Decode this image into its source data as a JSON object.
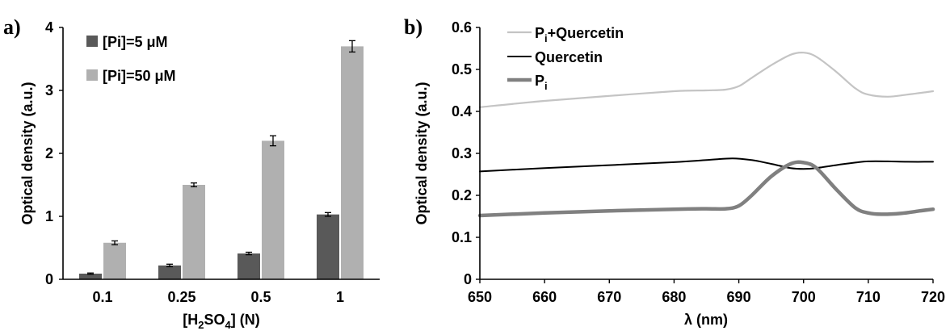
{
  "chart_data": [
    {
      "panel_label": "a)",
      "type": "bar",
      "categories": [
        "0.1",
        "0.25",
        "0.5",
        "1"
      ],
      "xlabel": {
        "pre": "[H",
        "sub1": "2",
        "mid": "SO",
        "sub2": "4",
        "post": "] (N)"
      },
      "ylabel": "Optical density  (a.u.)",
      "ylim": [
        0,
        4
      ],
      "yticks": [
        0,
        1,
        2,
        3,
        4
      ],
      "grid": false,
      "legend_position": "top-left",
      "series": [
        {
          "name": "[Pi]=5 μM",
          "color": "#595959",
          "values": [
            0.09,
            0.22,
            0.41,
            1.03
          ],
          "errors": [
            0.01,
            0.02,
            0.02,
            0.03
          ]
        },
        {
          "name": "[Pi]=50 μM",
          "color": "#b0b0b0",
          "values": [
            0.58,
            1.5,
            2.2,
            3.7
          ],
          "errors": [
            0.03,
            0.03,
            0.08,
            0.09
          ]
        }
      ]
    },
    {
      "panel_label": "b)",
      "type": "line",
      "xlabel": "λ (nm)",
      "ylabel": "Optical density (a.u.)",
      "xlim": [
        650,
        720
      ],
      "ylim": [
        0,
        0.6
      ],
      "xticks": [
        650,
        660,
        670,
        680,
        690,
        700,
        710,
        720
      ],
      "yticks": [
        "0",
        "0.1",
        "0.2",
        "0.3",
        "0.4",
        "0.5",
        "0.6"
      ],
      "grid": false,
      "legend_position": "top-left",
      "series": [
        {
          "name": "Pi+Quercetin",
          "name_main": "P",
          "name_sub": "i",
          "name_rest": "+Quercetin",
          "color": "#c4c4c4",
          "width": 2.2,
          "x": [
            650,
            660,
            670,
            680,
            685,
            688,
            690,
            692,
            695,
            698,
            700,
            702,
            705,
            708,
            710,
            713,
            716,
            720
          ],
          "y": [
            0.41,
            0.425,
            0.437,
            0.448,
            0.45,
            0.452,
            0.46,
            0.48,
            0.51,
            0.535,
            0.54,
            0.53,
            0.495,
            0.455,
            0.44,
            0.435,
            0.44,
            0.448
          ]
        },
        {
          "name": "Quercetin",
          "color": "#000000",
          "width": 2,
          "x": [
            650,
            660,
            670,
            680,
            685,
            689,
            692,
            695,
            698,
            700,
            702,
            705,
            708,
            710,
            713,
            716,
            720
          ],
          "y": [
            0.257,
            0.265,
            0.272,
            0.279,
            0.284,
            0.288,
            0.284,
            0.275,
            0.265,
            0.263,
            0.265,
            0.272,
            0.278,
            0.281,
            0.281,
            0.28,
            0.28
          ]
        },
        {
          "name": "Pi",
          "name_main": "P",
          "name_sub": "i",
          "name_rest": "",
          "color": "#808080",
          "width": 4.5,
          "x": [
            650,
            660,
            670,
            680,
            685,
            688,
            690,
            692,
            695,
            698,
            700,
            702,
            705,
            708,
            710,
            712,
            715,
            718,
            720
          ],
          "y": [
            0.152,
            0.158,
            0.163,
            0.167,
            0.168,
            0.168,
            0.175,
            0.2,
            0.245,
            0.275,
            0.278,
            0.265,
            0.215,
            0.17,
            0.158,
            0.155,
            0.157,
            0.163,
            0.167
          ]
        }
      ]
    }
  ]
}
